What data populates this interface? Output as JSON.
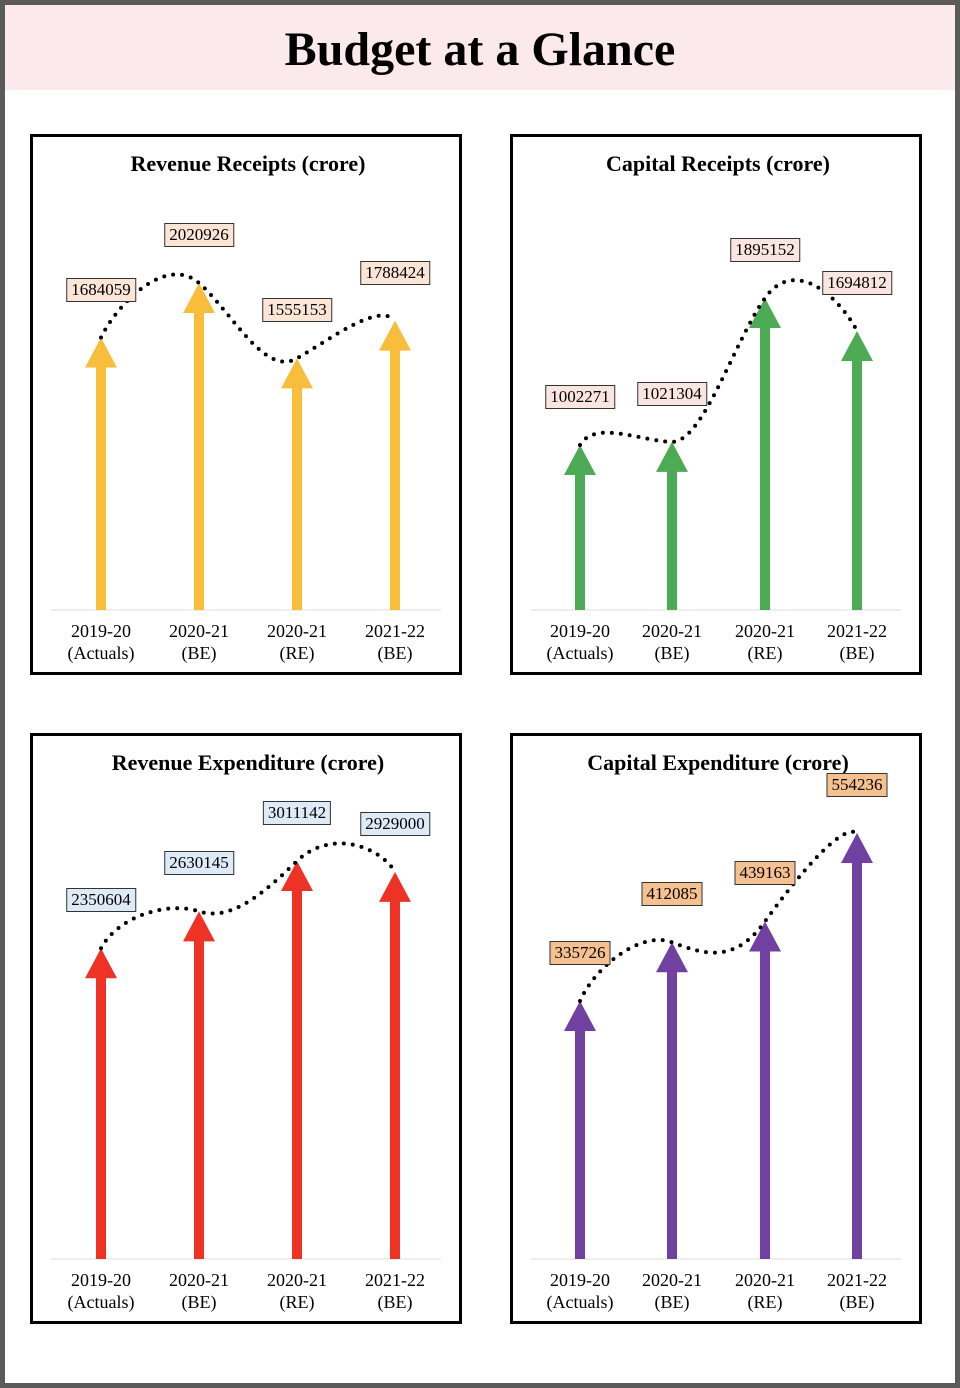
{
  "header": {
    "title": "Budget at a Glance"
  },
  "chart_data": [
    {
      "type": "bar",
      "title": "Revenue Receipts (crore)",
      "categories": [
        "2019-20\n(Actuals)",
        "2020-21\n(BE)",
        "2020-21\n(RE)",
        "2021-22\n(BE)"
      ],
      "values": [
        1684059,
        2020926,
        1555153,
        1788424
      ],
      "color": "#f7bd3b",
      "label_color": "#fbe5d6"
    },
    {
      "type": "bar",
      "title": "Capital Receipts (crore)",
      "categories": [
        "2019-20\n(Actuals)",
        "2020-21\n(BE)",
        "2020-21\n(RE)",
        "2021-22\n(BE)"
      ],
      "values": [
        1002271,
        1021304,
        1895152,
        1694812
      ],
      "color": "#4eab55",
      "label_color": "#fbe5e0"
    },
    {
      "type": "bar",
      "title": "Revenue Expenditure (crore)",
      "categories": [
        "2019-20\n(Actuals)",
        "2020-21\n(BE)",
        "2020-21\n(RE)",
        "2021-22\n(BE)"
      ],
      "values": [
        2350604,
        2630145,
        3011142,
        2929000
      ],
      "color": "#ee3226",
      "label_color": "#deebf7"
    },
    {
      "type": "bar",
      "title": "Capital Expenditure (crore)",
      "categories": [
        "2019-20\n(Actuals)",
        "2020-21\n(BE)",
        "2020-21\n(RE)",
        "2021-22\n(BE)"
      ],
      "values": [
        335726,
        412085,
        439163,
        554236
      ],
      "color": "#7041a0",
      "label_color": "#f6c190"
    }
  ]
}
